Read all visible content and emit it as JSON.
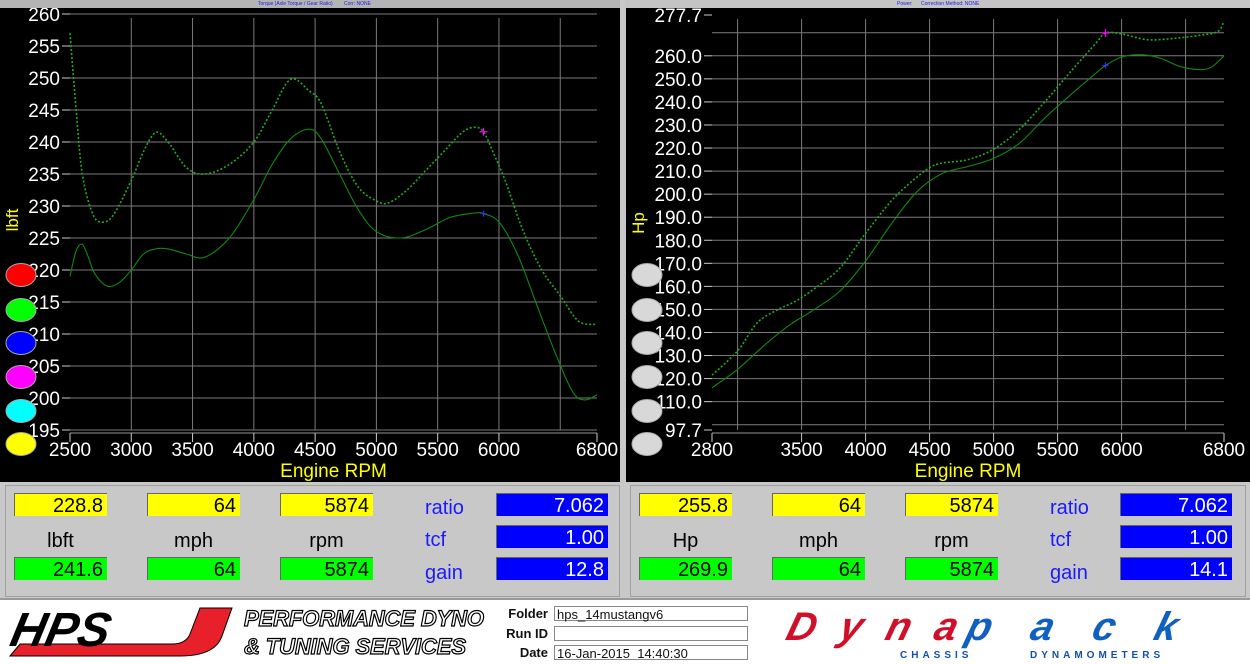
{
  "torque_panel": {
    "title": "Torque (Axle Torque / Gear Ratio)",
    "corr": "Corr: NONE",
    "ylabel": "lbft",
    "xlabel": "Engine RPM",
    "legend_swatches": [
      "#ff0000",
      "#00ff00",
      "#0000ff",
      "#ff00ff",
      "#00ffff",
      "#ffff00"
    ]
  },
  "power_panel": {
    "title": "Power:",
    "corr": "Correction Method: NONE",
    "ylabel": "Hp",
    "xlabel": "Engine RPM",
    "legend_swatches": [
      "#d8d8d8",
      "#d8d8d8",
      "#d8d8d8",
      "#d8d8d8",
      "#d8d8d8",
      "#d8d8d8"
    ]
  },
  "chart_data": [
    {
      "type": "line",
      "xlabel": "Engine RPM",
      "ylabel": "lbft",
      "xlim": [
        2500,
        6800
      ],
      "ylim": [
        195,
        260
      ],
      "xticks": [
        2500,
        3000,
        3500,
        4000,
        4500,
        5000,
        5500,
        6000,
        6800
      ],
      "yticks": [
        195,
        200,
        205,
        210,
        215,
        220,
        225,
        230,
        235,
        240,
        245,
        250,
        255,
        260
      ],
      "grid": true,
      "cursor_rpm": 5874,
      "series": [
        {
          "style": "dotted",
          "color": "#22aa22",
          "x": [
            2500,
            2550,
            2600,
            2680,
            2750,
            2850,
            3000,
            3100,
            3200,
            3300,
            3450,
            3600,
            3800,
            4000,
            4150,
            4300,
            4450,
            4550,
            4700,
            4850,
            5000,
            5100,
            5250,
            5400,
            5550,
            5700,
            5800,
            5874,
            5950,
            6050,
            6200,
            6350,
            6500,
            6650,
            6800
          ],
          "y": [
            257,
            245,
            235,
            229,
            227.5,
            228.5,
            234,
            238.5,
            241.5,
            240,
            236,
            235,
            236.5,
            240,
            245,
            249.8,
            248,
            246,
            238.5,
            233,
            230.8,
            230.5,
            232.5,
            235.5,
            238.5,
            241.5,
            242.3,
            241.6,
            238.5,
            234,
            226,
            220,
            216,
            212,
            211.5
          ]
        },
        {
          "style": "solid",
          "color": "#118811",
          "x": [
            2500,
            2550,
            2600,
            2650,
            2700,
            2800,
            2900,
            3000,
            3100,
            3200,
            3300,
            3450,
            3600,
            3800,
            4000,
            4150,
            4300,
            4450,
            4550,
            4700,
            4850,
            5000,
            5200,
            5400,
            5600,
            5800,
            5874,
            6000,
            6150,
            6300,
            6450,
            6600,
            6700,
            6800
          ],
          "y": [
            219,
            223,
            224,
            222,
            219.5,
            217.5,
            218,
            220,
            222.5,
            223.3,
            223.3,
            222.5,
            222,
            225,
            231,
            236.5,
            240.5,
            242,
            240.5,
            235,
            229.5,
            226,
            225,
            226.3,
            228.2,
            228.9,
            228.8,
            227.5,
            222.5,
            215,
            207.5,
            201,
            199.7,
            200.5
          ]
        }
      ],
      "cursor_values": {
        "dotted": 241.6,
        "solid": 228.8
      }
    },
    {
      "type": "line",
      "xlabel": "Engine RPM",
      "ylabel": "Hp",
      "xlim": [
        2800,
        6800
      ],
      "ylim": [
        97.7,
        277.7
      ],
      "xticks": [
        2800,
        3500,
        4000,
        4500,
        5000,
        5500,
        6000,
        6800
      ],
      "xgrid": [
        3000,
        3500,
        4000,
        4500,
        5000,
        5500,
        6000,
        6500
      ],
      "yticks": [
        97.7,
        110.0,
        120.0,
        130.0,
        140.0,
        150.0,
        160.0,
        170.0,
        180.0,
        190.0,
        200.0,
        210.0,
        220.0,
        230.0,
        240.0,
        250.0,
        260.0,
        277.7
      ],
      "ygrid": [
        100,
        110,
        120,
        130,
        140,
        150,
        160,
        170,
        180,
        190,
        200,
        210,
        220,
        230,
        240,
        250,
        260,
        270
      ],
      "grid": true,
      "cursor_rpm": 5874,
      "series": [
        {
          "style": "dotted",
          "color": "#22aa22",
          "x": [
            2800,
            3000,
            3150,
            3300,
            3450,
            3600,
            3800,
            4000,
            4200,
            4350,
            4500,
            4600,
            4800,
            5000,
            5200,
            5400,
            5600,
            5800,
            5874,
            6000,
            6200,
            6400,
            6600,
            6750,
            6800
          ],
          "y": [
            121.5,
            132,
            144,
            149.5,
            153.5,
            159,
            168,
            183,
            197,
            205,
            211.5,
            213.5,
            215,
            219.5,
            228,
            240,
            253,
            265.5,
            269.9,
            269.5,
            267,
            267.5,
            268.8,
            270.5,
            275
          ]
        },
        {
          "style": "solid",
          "color": "#118811",
          "x": [
            2800,
            3000,
            3200,
            3400,
            3600,
            3800,
            4000,
            4200,
            4400,
            4600,
            4800,
            5000,
            5200,
            5400,
            5600,
            5800,
            5874,
            6000,
            6150,
            6300,
            6450,
            6600,
            6700,
            6800
          ],
          "y": [
            116,
            124,
            134,
            143,
            150,
            158,
            171,
            187,
            201,
            209,
            212,
            215.5,
            222,
            233,
            243,
            252.5,
            255.8,
            259.5,
            260.5,
            259,
            255.5,
            254,
            255,
            260
          ]
        }
      ],
      "cursor_values": {
        "dotted": 269.9,
        "solid": 255.8
      }
    }
  ],
  "torque_readout": {
    "current": {
      "value": "228.8",
      "mph": "64",
      "rpm": "5874"
    },
    "units": {
      "value": "lbft",
      "mph": "mph",
      "rpm": "rpm"
    },
    "max": {
      "value": "241.6",
      "mph": "64",
      "rpm": "5874"
    },
    "ratio_label": "ratio",
    "ratio": "7.062",
    "tcf_label": "tcf",
    "tcf": "1.00",
    "gain_label": "gain",
    "gain": "12.8"
  },
  "power_readout": {
    "current": {
      "value": "255.8",
      "mph": "64",
      "rpm": "5874"
    },
    "units": {
      "value": "Hp",
      "mph": "mph",
      "rpm": "rpm"
    },
    "max": {
      "value": "269.9",
      "mph": "64",
      "rpm": "5874"
    },
    "ratio_label": "ratio",
    "ratio": "7.062",
    "tcf_label": "tcf",
    "tcf": "1.00",
    "gain_label": "gain",
    "gain": "14.1"
  },
  "footer": {
    "hps_logo": "HPS",
    "hps_tagline_1": "PERFORMANCE DYNO",
    "hps_tagline_2": "& TUNING SERVICES",
    "folder_label": "Folder",
    "folder": "hps_14mustangv6",
    "runid_label": "Run ID",
    "runid": "",
    "date_label": "Date",
    "date": "16-Jan-2015  14:40:30",
    "dynapack_logo_1": "Dyna",
    "dynapack_logo_2": "pack",
    "dynapack_sub_1": "CHASSIS",
    "dynapack_sub_2": "DYNAMOMETERS"
  }
}
